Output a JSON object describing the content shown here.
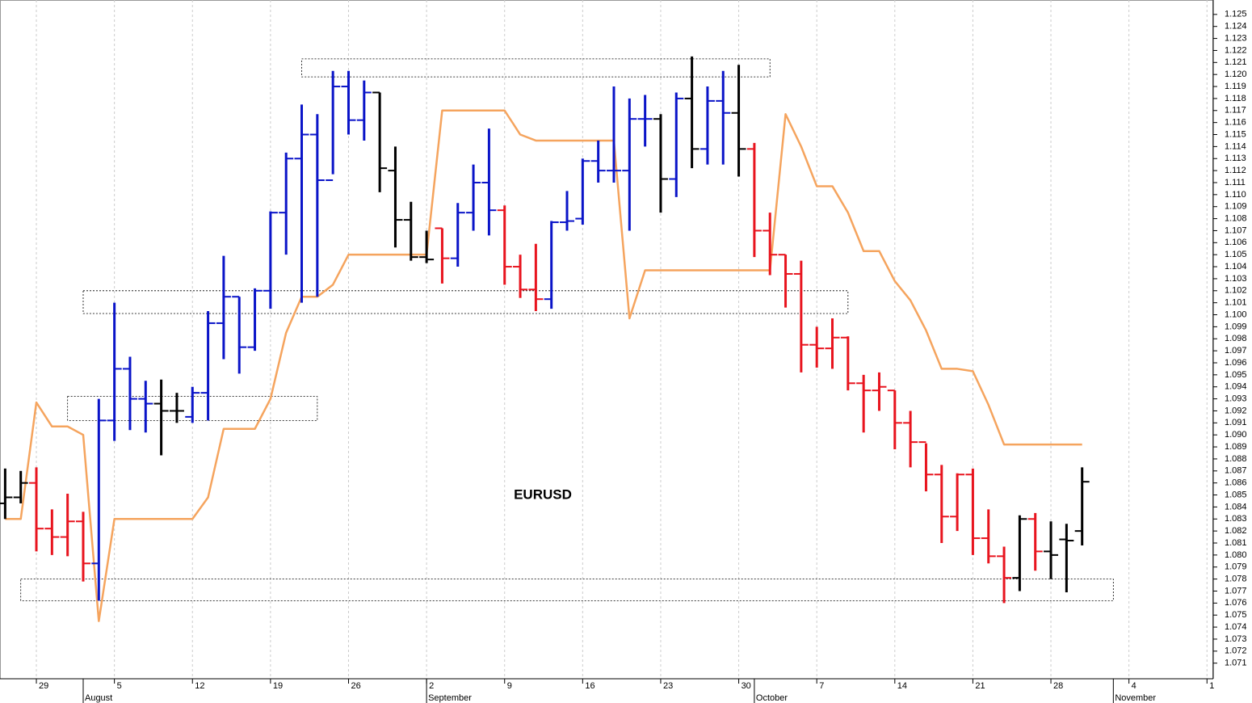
{
  "chart_data": {
    "type": "ohlc",
    "annotation": "EURUSD",
    "x": [
      -2,
      -1,
      0,
      1,
      2,
      3,
      4,
      5,
      6,
      7,
      8,
      9,
      10,
      11,
      12,
      13,
      14,
      15,
      16,
      17,
      18,
      19,
      20,
      21,
      22,
      23,
      24,
      25,
      26,
      27,
      28,
      29,
      30,
      31,
      32,
      33,
      34,
      35,
      36,
      37,
      38,
      39,
      40,
      41,
      42,
      43,
      44,
      45,
      46,
      47,
      48,
      49,
      50,
      51,
      52,
      53,
      54,
      55,
      56,
      57,
      58,
      59,
      60,
      61,
      62,
      63,
      64,
      65,
      66,
      67
    ],
    "open": [
      1.0843,
      1.0848,
      1.086,
      1.0822,
      1.0815,
      1.0828,
      1.0793,
      1.0912,
      1.0955,
      1.093,
      1.0926,
      1.092,
      1.0915,
      1.0935,
      1.0993,
      1.1015,
      1.0973,
      1.102,
      1.1085,
      1.113,
      1.115,
      1.1112,
      1.119,
      1.1162,
      1.1185,
      1.112,
      1.1079,
      1.1048,
      1.1072,
      1.1047,
      1.1085,
      1.111,
      1.1087,
      1.104,
      1.1021,
      1.1013,
      1.1077,
      1.108,
      1.1128,
      1.112,
      1.112,
      1.1163,
      1.1163,
      1.1113,
      1.118,
      1.1138,
      1.1178,
      1.1168,
      1.1138,
      1.107,
      1.105,
      1.1034,
      1.0975,
      1.0972,
      1.0981,
      1.0943,
      1.0937,
      1.0937,
      1.091,
      1.0894,
      1.0867,
      1.0832,
      1.0867,
      1.0814,
      1.0799,
      1.0781,
      1.083,
      1.0803,
      1.0813,
      1.082
    ],
    "high": [
      1.0872,
      1.087,
      1.0873,
      1.0838,
      1.0851,
      1.0836,
      1.093,
      1.101,
      1.0965,
      1.0945,
      1.0946,
      1.0935,
      1.094,
      1.1003,
      1.1049,
      1.1015,
      1.1022,
      1.1086,
      1.1135,
      1.1175,
      1.1167,
      1.1203,
      1.1203,
      1.1195,
      1.1185,
      1.114,
      1.1094,
      1.107,
      1.1072,
      1.1093,
      1.1125,
      1.1155,
      1.1091,
      1.105,
      1.1059,
      1.1078,
      1.1103,
      1.113,
      1.1145,
      1.119,
      1.118,
      1.1183,
      1.1167,
      1.1185,
      1.1215,
      1.119,
      1.1203,
      1.1208,
      1.1143,
      1.1085,
      1.105,
      1.1045,
      1.099,
      1.0997,
      1.0982,
      1.095,
      1.0952,
      1.0937,
      1.092,
      1.0893,
      1.0875,
      1.0868,
      1.0872,
      1.0838,
      1.0807,
      1.0833,
      1.0835,
      1.0828,
      1.0826,
      1.0873
    ],
    "low": [
      1.083,
      1.0843,
      1.0803,
      1.08,
      1.0799,
      1.0778,
      1.0762,
      1.0895,
      1.0904,
      1.0902,
      1.0883,
      1.091,
      1.091,
      1.0912,
      1.0963,
      1.0951,
      1.097,
      1.1005,
      1.105,
      1.101,
      1.1015,
      1.1117,
      1.115,
      1.1145,
      1.1102,
      1.1056,
      1.1045,
      1.1043,
      1.1026,
      1.104,
      1.107,
      1.1066,
      1.1025,
      1.1014,
      1.1003,
      1.1005,
      1.107,
      1.1075,
      1.111,
      1.111,
      1.107,
      1.114,
      1.1085,
      1.1098,
      1.1122,
      1.1125,
      1.1125,
      1.1115,
      1.1048,
      1.1033,
      1.1006,
      1.0952,
      1.0956,
      1.0955,
      1.0937,
      1.0902,
      1.092,
      1.0888,
      1.0873,
      1.0853,
      1.081,
      1.082,
      1.08,
      1.0793,
      1.076,
      1.077,
      1.0787,
      1.078,
      1.0769,
      1.0808
    ],
    "close": [
      1.0848,
      1.086,
      1.0822,
      1.0815,
      1.0828,
      1.0793,
      1.0912,
      1.0955,
      1.093,
      1.0926,
      1.092,
      1.092,
      1.0935,
      1.0993,
      1.1015,
      1.0973,
      1.102,
      1.1085,
      1.113,
      1.115,
      1.1112,
      1.119,
      1.1162,
      1.1185,
      1.1122,
      1.1079,
      1.1048,
      1.1046,
      1.1047,
      1.1085,
      1.111,
      1.1087,
      1.104,
      1.1021,
      1.1013,
      1.1077,
      1.1078,
      1.1128,
      1.112,
      1.112,
      1.1163,
      1.1163,
      1.1113,
      1.118,
      1.1138,
      1.1178,
      1.1168,
      1.1138,
      1.107,
      1.105,
      1.1034,
      1.0975,
      1.0972,
      1.0981,
      1.0943,
      1.0937,
      1.094,
      1.091,
      1.0894,
      1.0867,
      1.0832,
      1.0867,
      1.0814,
      1.0799,
      1.0781,
      1.083,
      1.0803,
      1.08,
      1.0812,
      1.0861
    ],
    "colors": [
      "#000000",
      "#000000",
      "#e8141e",
      "#e8141e",
      "#e8141e",
      "#e8141e",
      "#0a14c8",
      "#0a14c8",
      "#0a14c8",
      "#0a14c8",
      "#000000",
      "#000000",
      "#0a14c8",
      "#0a14c8",
      "#0a14c8",
      "#0a14c8",
      "#0a14c8",
      "#0a14c8",
      "#0a14c8",
      "#0a14c8",
      "#0a14c8",
      "#0a14c8",
      "#0a14c8",
      "#0a14c8",
      "#000000",
      "#000000",
      "#000000",
      "#000000",
      "#e8141e",
      "#0a14c8",
      "#0a14c8",
      "#0a14c8",
      "#e8141e",
      "#e8141e",
      "#e8141e",
      "#0a14c8",
      "#0a14c8",
      "#0a14c8",
      "#0a14c8",
      "#0a14c8",
      "#0a14c8",
      "#0a14c8",
      "#000000",
      "#0a14c8",
      "#000000",
      "#0a14c8",
      "#0a14c8",
      "#000000",
      "#e8141e",
      "#e8141e",
      "#e8141e",
      "#e8141e",
      "#e8141e",
      "#e8141e",
      "#e8141e",
      "#e8141e",
      "#e8141e",
      "#e8141e",
      "#e8141e",
      "#e8141e",
      "#e8141e",
      "#e8141e",
      "#e8141e",
      "#e8141e",
      "#e8141e",
      "#000000",
      "#e8141e",
      "#000000",
      "#000000",
      "#000000"
    ],
    "overlay": {
      "type": "line",
      "color": "#f5a45e",
      "values": [
        1.083,
        1.083,
        1.0927,
        1.0907,
        1.0907,
        1.09,
        1.0745,
        1.083,
        1.083,
        1.083,
        1.083,
        1.083,
        1.083,
        1.0848,
        1.0905,
        1.0905,
        1.0905,
        1.093,
        1.0985,
        1.1015,
        1.1015,
        1.1025,
        1.105,
        1.105,
        1.105,
        1.105,
        1.105,
        1.105,
        1.117,
        1.117,
        1.117,
        1.117,
        1.117,
        1.115,
        1.1145,
        1.1145,
        1.1145,
        1.1145,
        1.1145,
        1.1145,
        1.0997,
        1.1037,
        1.1037,
        1.1037,
        1.1037,
        1.1037,
        1.1037,
        1.1037,
        1.1037,
        1.1037,
        1.1167,
        1.114,
        1.1107,
        1.1107,
        1.1085,
        1.1053,
        1.1053,
        1.1028,
        1.1012,
        1.0987,
        1.0955,
        1.0955,
        1.0953,
        1.0925,
        1.0892,
        1.0892,
        1.0892,
        1.0892,
        1.0892,
        1.0892
      ]
    },
    "zones": [
      {
        "x": [
          17,
          47
        ],
        "y": [
          1.1198,
          1.1213
        ]
      },
      {
        "x": [
          3,
          52
        ],
        "y": [
          1.1001,
          1.102
        ]
      },
      {
        "x": [
          2,
          18
        ],
        "y": [
          1.0912,
          1.0932
        ]
      },
      {
        "x": [
          -1,
          69
        ],
        "y": [
          1.0762,
          1.078
        ]
      }
    ],
    "xlim": [
      -2.33,
      75.4
    ],
    "ylim": [
      1.0697,
      1.1262
    ],
    "grid": "x",
    "xticks": [
      {
        "value": 0,
        "label": "29"
      },
      {
        "value": 5,
        "label": "5"
      },
      {
        "value": 10,
        "label": "12"
      },
      {
        "value": 15,
        "label": "19"
      },
      {
        "value": 20,
        "label": "26"
      },
      {
        "value": 25,
        "label": "2"
      },
      {
        "value": 30,
        "label": "9"
      },
      {
        "value": 35,
        "label": "16"
      },
      {
        "value": 40,
        "label": "23"
      },
      {
        "value": 45,
        "label": "30"
      },
      {
        "value": 50,
        "label": "7"
      },
      {
        "value": 55,
        "label": "14"
      },
      {
        "value": 60,
        "label": "21"
      },
      {
        "value": 65,
        "label": "28"
      },
      {
        "value": 70,
        "label": "4"
      },
      {
        "value": 75,
        "label": "1"
      }
    ],
    "months": [
      {
        "value": 3,
        "label": "August"
      },
      {
        "value": 25,
        "label": "September"
      },
      {
        "value": 46,
        "label": "October"
      },
      {
        "value": 69,
        "label": "November"
      }
    ],
    "yticks": [
      {
        "value": 1.071,
        "label": "1.071"
      },
      {
        "value": 1.072,
        "label": "1.072"
      },
      {
        "value": 1.073,
        "label": "1.073"
      },
      {
        "value": 1.074,
        "label": "1.074"
      },
      {
        "value": 1.075,
        "label": "1.075"
      },
      {
        "value": 1.076,
        "label": "1.076"
      },
      {
        "value": 1.077,
        "label": "1.077"
      },
      {
        "value": 1.078,
        "label": "1.078"
      },
      {
        "value": 1.079,
        "label": "1.079"
      },
      {
        "value": 1.08,
        "label": "1.080"
      },
      {
        "value": 1.081,
        "label": "1.081"
      },
      {
        "value": 1.082,
        "label": "1.082"
      },
      {
        "value": 1.083,
        "label": "1.083"
      },
      {
        "value": 1.084,
        "label": "1.084"
      },
      {
        "value": 1.085,
        "label": "1.085"
      },
      {
        "value": 1.086,
        "label": "1.086"
      },
      {
        "value": 1.087,
        "label": "1.087"
      },
      {
        "value": 1.088,
        "label": "1.088"
      },
      {
        "value": 1.089,
        "label": "1.089"
      },
      {
        "value": 1.09,
        "label": "1.090"
      },
      {
        "value": 1.091,
        "label": "1.091"
      },
      {
        "value": 1.092,
        "label": "1.092"
      },
      {
        "value": 1.093,
        "label": "1.093"
      },
      {
        "value": 1.094,
        "label": "1.094"
      },
      {
        "value": 1.095,
        "label": "1.095"
      },
      {
        "value": 1.096,
        "label": "1.096"
      },
      {
        "value": 1.097,
        "label": "1.097"
      },
      {
        "value": 1.098,
        "label": "1.098"
      },
      {
        "value": 1.099,
        "label": "1.099"
      },
      {
        "value": 1.1,
        "label": "1.100"
      },
      {
        "value": 1.101,
        "label": "1.101"
      },
      {
        "value": 1.102,
        "label": "1.102"
      },
      {
        "value": 1.103,
        "label": "1.103"
      },
      {
        "value": 1.104,
        "label": "1.104"
      },
      {
        "value": 1.105,
        "label": "1.105"
      },
      {
        "value": 1.106,
        "label": "1.106"
      },
      {
        "value": 1.107,
        "label": "1.107"
      },
      {
        "value": 1.108,
        "label": "1.108"
      },
      {
        "value": 1.109,
        "label": "1.109"
      },
      {
        "value": 1.11,
        "label": "1.110"
      },
      {
        "value": 1.111,
        "label": "1.111"
      },
      {
        "value": 1.112,
        "label": "1.112"
      },
      {
        "value": 1.113,
        "label": "1.113"
      },
      {
        "value": 1.114,
        "label": "1.114"
      },
      {
        "value": 1.115,
        "label": "1.115"
      },
      {
        "value": 1.116,
        "label": "1.116"
      },
      {
        "value": 1.117,
        "label": "1.117"
      },
      {
        "value": 1.118,
        "label": "1.118"
      },
      {
        "value": 1.119,
        "label": "1.119"
      },
      {
        "value": 1.12,
        "label": "1.120"
      },
      {
        "value": 1.121,
        "label": "1.121"
      },
      {
        "value": 1.122,
        "label": "1.122"
      },
      {
        "value": 1.123,
        "label": "1.123"
      },
      {
        "value": 1.124,
        "label": "1.124"
      },
      {
        "value": 1.125,
        "label": "1.125"
      }
    ]
  }
}
